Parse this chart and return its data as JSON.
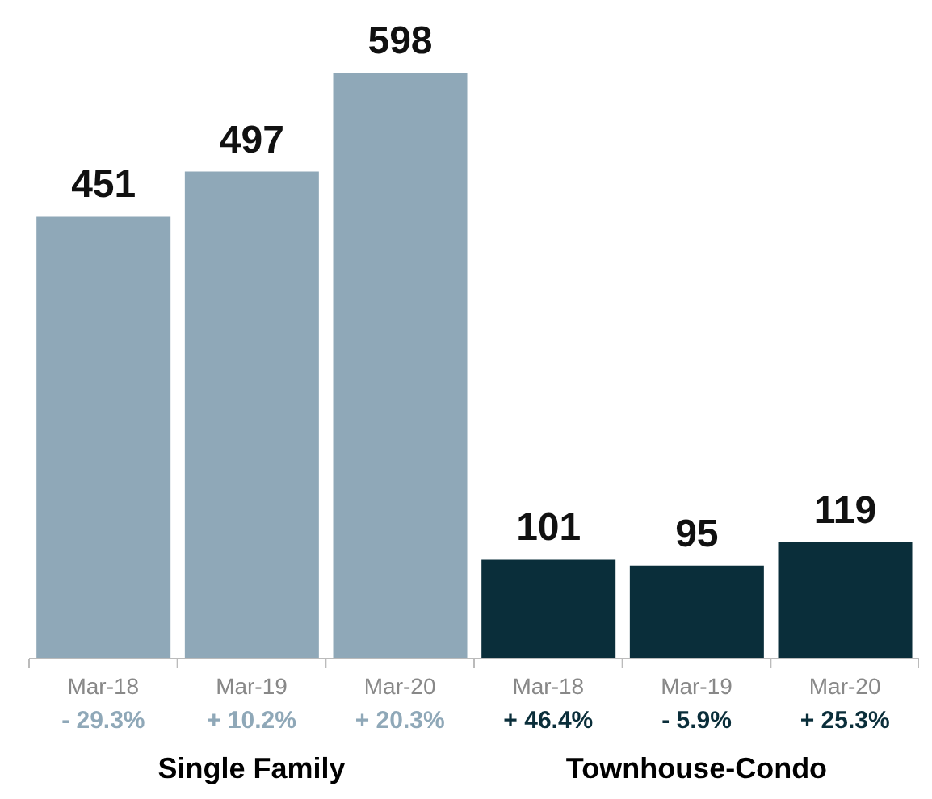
{
  "chart_data": {
    "type": "bar",
    "stacked": true,
    "data_labels": true,
    "categories": [
      "Mar-18",
      "Mar-19",
      "Mar-20",
      "Mar-18",
      "Mar-19",
      "Mar-20"
    ],
    "series": [
      {
        "color": "#8fa8b8",
        "values": [
          451,
          497,
          598,
          null,
          null,
          null
        ]
      },
      {
        "color": "#0a2e3a",
        "values": [
          null,
          null,
          null,
          101,
          95,
          119
        ]
      }
    ],
    "annotations": [
      "- 29.3%",
      "+ 10.2%",
      "+ 20.3%",
      "+ 46.4%",
      "- 5.9%",
      "+ 25.3%",
      "Single Family",
      "Townhouse-Condo"
    ]
  }
}
